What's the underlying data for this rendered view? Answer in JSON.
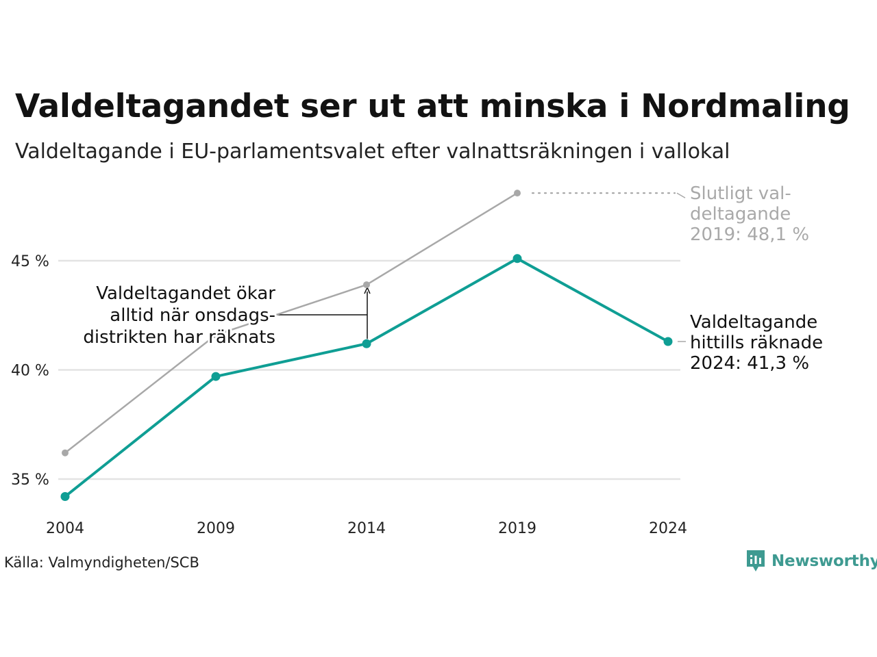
{
  "header": {
    "title": "Valdeltagandet ser ut att minska i Nordmaling",
    "subtitle": "Valdeltagande i EU-parlamentsvalet efter valnattsräkningen i vallokal"
  },
  "footer": {
    "source": "Källa: Valmyndigheten/SCB",
    "brand": "Newsworthy"
  },
  "colors": {
    "preliminary": "#0f9e94",
    "final": "#a8a8a8",
    "grid": "#e3e3e3",
    "brand": "#3e9a91"
  },
  "icons": [
    "newsworthy-logo-icon"
  ],
  "chart_data": {
    "type": "line",
    "x": [
      "2004",
      "2009",
      "2014",
      "2019",
      "2024"
    ],
    "y_ticks": [
      "35 %",
      "40 %",
      "45 %"
    ],
    "y_tick_values": [
      35,
      40,
      45
    ],
    "ylim": [
      33.5,
      49
    ],
    "grid": true,
    "series": [
      {
        "key": "preliminary",
        "values": [
          34.2,
          39.7,
          41.2,
          45.1,
          41.3
        ]
      },
      {
        "key": "final",
        "values": [
          36.2,
          41.6,
          43.9,
          48.1,
          null
        ]
      }
    ],
    "annotations": {
      "final_label": [
        "Slutligt val-",
        "deltagande",
        "2019: 48,1 %"
      ],
      "current_label": [
        "Valdeltagande",
        "hittills räknade",
        "2024: 41,3 %"
      ],
      "middle_label": [
        "Valdeltagandet ökar",
        "alltid när onsdags-",
        "distrikten har räknats"
      ]
    }
  }
}
